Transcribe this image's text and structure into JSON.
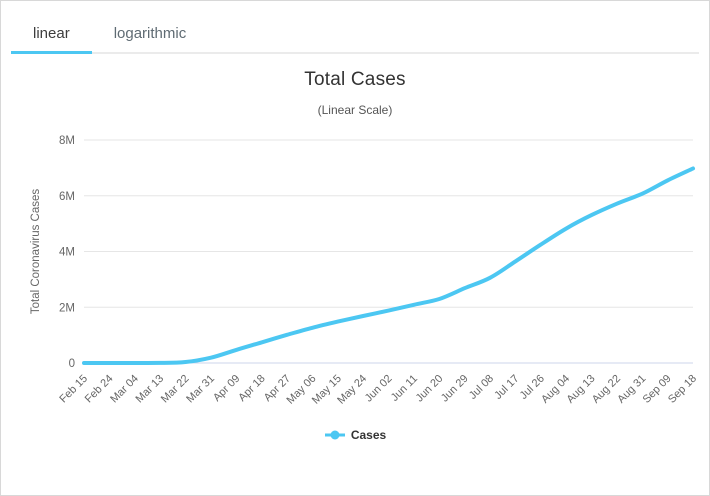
{
  "tabs": {
    "linear": {
      "label": "linear",
      "active": true
    },
    "logarithmic": {
      "label": "logarithmic",
      "active": false
    }
  },
  "colors": {
    "accent": "#4cc7f2",
    "grid_line": "#e6e6e6",
    "axis_line": "#ccd6eb",
    "axis_label": "#666666",
    "title_text": "#333333"
  },
  "chart_data": {
    "type": "line",
    "title": "Total Cases",
    "subtitle": "(Linear Scale)",
    "xlabel": "",
    "ylabel": "Total Coronavirus Cases",
    "ylim": [
      0,
      8000000
    ],
    "grid": true,
    "legend_position": "bottom",
    "yticks": {
      "values": [
        0,
        2000000,
        4000000,
        6000000,
        8000000
      ],
      "labels": [
        "0",
        "2M",
        "4M",
        "6M",
        "8M"
      ]
    },
    "categories": [
      "Feb 15",
      "Feb 24",
      "Mar 04",
      "Mar 13",
      "Mar 22",
      "Mar 31",
      "Apr 09",
      "Apr 18",
      "Apr 27",
      "May 06",
      "May 15",
      "May 24",
      "Jun 02",
      "Jun 11",
      "Jun 20",
      "Jun 29",
      "Jul 08",
      "Jul 17",
      "Jul 26",
      "Aug 04",
      "Aug 13",
      "Aug 22",
      "Aug 31",
      "Sep 09",
      "Sep 18"
    ],
    "series": [
      {
        "name": "Cases",
        "color": "#4cc7f2",
        "values": [
          15,
          53,
          160,
          2500,
          35000,
          190000,
          470000,
          740000,
          1010000,
          1263000,
          1484000,
          1686000,
          1881000,
          2089000,
          2297000,
          2682000,
          3055000,
          3644000,
          4248000,
          4823000,
          5306000,
          5715000,
          6075000,
          6549000,
          6979000
        ]
      }
    ]
  }
}
